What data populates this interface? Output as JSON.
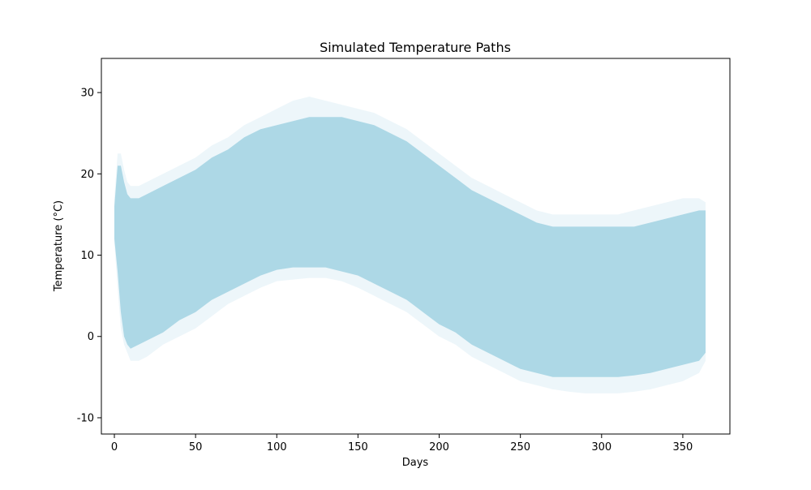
{
  "chart_data": {
    "type": "area",
    "title": "Simulated Temperature Paths",
    "xlabel": "Days",
    "ylabel": "Temperature (°C)",
    "xlim": [
      -8,
      379
    ],
    "ylim": [
      -12,
      34.2
    ],
    "x_ticks": [
      0,
      50,
      100,
      150,
      200,
      250,
      300,
      350
    ],
    "y_ticks": [
      -10,
      0,
      10,
      20,
      30
    ],
    "grid": false,
    "legend": "none",
    "colors": {
      "fill": "#add8e6"
    },
    "band": {
      "x": [
        0,
        2,
        4,
        6,
        8,
        10,
        15,
        20,
        30,
        40,
        50,
        60,
        70,
        80,
        90,
        100,
        110,
        120,
        130,
        140,
        150,
        160,
        170,
        180,
        190,
        200,
        210,
        220,
        230,
        240,
        250,
        260,
        270,
        280,
        290,
        300,
        310,
        320,
        330,
        340,
        350,
        360,
        364
      ],
      "lower": [
        12,
        8,
        3,
        0,
        -1,
        -1.5,
        -1,
        -0.5,
        0.5,
        2,
        3,
        4.5,
        5.5,
        6.5,
        7.5,
        8.2,
        8.5,
        8.5,
        8.5,
        8,
        7.5,
        6.5,
        5.5,
        4.5,
        3,
        1.5,
        0.5,
        -1,
        -2,
        -3,
        -4,
        -4.5,
        -5,
        -5,
        -5,
        -5,
        -5,
        -4.8,
        -4.5,
        -4,
        -3.5,
        -3,
        -2
      ],
      "upper": [
        16,
        21,
        21,
        19,
        17.5,
        17,
        17,
        17.5,
        18.5,
        19.5,
        20.5,
        22,
        23,
        24.5,
        25.5,
        26,
        26.5,
        27,
        27,
        27,
        26.5,
        26,
        25,
        24,
        22.5,
        21,
        19.5,
        18,
        17,
        16,
        15,
        14,
        13.5,
        13.5,
        13.5,
        13.5,
        13.5,
        13.5,
        14,
        14.5,
        15,
        15.5,
        15.5
      ],
      "spread_lower": [
        11.5,
        6,
        1,
        -1,
        -2,
        -3,
        -3,
        -2.5,
        -1,
        0,
        1,
        2.5,
        4,
        5,
        6,
        6.8,
        7,
        7.2,
        7.2,
        6.8,
        6,
        5,
        4,
        3,
        1.5,
        0,
        -1,
        -2.5,
        -3.5,
        -4.5,
        -5.5,
        -6,
        -6.5,
        -6.8,
        -7,
        -7,
        -7,
        -6.8,
        -6.5,
        -6,
        -5.5,
        -4.5,
        -3
      ],
      "spread_upper": [
        17,
        22.5,
        22.5,
        20.5,
        19,
        18.5,
        18.5,
        19,
        20,
        21,
        22,
        23.5,
        24.5,
        26,
        27,
        28,
        29,
        29.5,
        29,
        28.5,
        28,
        27.5,
        26.5,
        25.5,
        24,
        22.5,
        21,
        19.5,
        18.5,
        17.5,
        16.5,
        15.5,
        15,
        15,
        15,
        15,
        15,
        15.5,
        16,
        16.5,
        17,
        17,
        16.5
      ]
    }
  }
}
